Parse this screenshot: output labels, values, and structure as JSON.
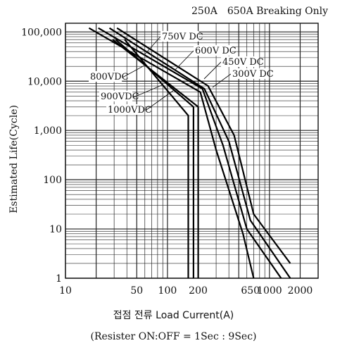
{
  "header": {
    "left": "250A",
    "right": "650A Breaking Only"
  },
  "chart_data": {
    "type": "line",
    "x_scale": "log",
    "y_scale": "log",
    "xlabel": "접점 전류 Load Current(A)",
    "ylabel": "Estimated Life(Cycle)",
    "note": "(Resister ON:OFF = 1Sec : 9Sec)",
    "xlim": [
      10,
      3000
    ],
    "ylim": [
      1,
      150000
    ],
    "x_ticks": [
      {
        "value": 10,
        "label": "10"
      },
      {
        "value": 50,
        "label": "50"
      },
      {
        "value": 100,
        "label": "100"
      },
      {
        "value": 200,
        "label": "200"
      },
      {
        "value": 650,
        "label": "650"
      },
      {
        "value": 1000,
        "label": "1000"
      },
      {
        "value": 2000,
        "label": "2000"
      }
    ],
    "y_ticks": [
      {
        "value": 1,
        "label": "1"
      },
      {
        "value": 10,
        "label": "10"
      },
      {
        "value": 100,
        "label": "100"
      },
      {
        "value": 1000,
        "label": "1,000"
      },
      {
        "value": 10000,
        "label": "10,000"
      },
      {
        "value": 100000,
        "label": "100,000"
      }
    ],
    "grid": true,
    "series": [
      {
        "name": "300V DC",
        "points": [
          [
            32,
            120000
          ],
          [
            250,
            8000
          ],
          [
            450,
            800
          ],
          [
            700,
            20
          ],
          [
            1600,
            2
          ]
        ]
      },
      {
        "name": "450V DC",
        "points": [
          [
            27,
            120000
          ],
          [
            230,
            7000
          ],
          [
            400,
            600
          ],
          [
            650,
            15
          ],
          [
            1600,
            1
          ]
        ]
      },
      {
        "name": "600V DC",
        "points": [
          [
            21,
            120000
          ],
          [
            220,
            7000
          ],
          [
            350,
            500
          ],
          [
            600,
            10
          ],
          [
            1300,
            1
          ]
        ]
      },
      {
        "name": "750V DC",
        "points": [
          [
            17,
            120000
          ],
          [
            210,
            6000
          ],
          [
            300,
            400
          ],
          [
            550,
            8
          ],
          [
            700,
            1
          ]
        ]
      },
      {
        "name": "800VDC",
        "points": [
          [
            38,
            70000
          ],
          [
            160,
            2000
          ],
          [
            160,
            1
          ]
        ]
      },
      {
        "name": "900VDC",
        "points": [
          [
            31,
            70000
          ],
          [
            180,
            3000
          ],
          [
            180,
            1
          ]
        ]
      },
      {
        "name": "1000VDC",
        "points": [
          [
            29,
            70000
          ],
          [
            200,
            3000
          ],
          [
            200,
            1
          ]
        ]
      }
    ],
    "labels": [
      {
        "text": "750V DC"
      },
      {
        "text": "600V DC"
      },
      {
        "text": "450V DC"
      },
      {
        "text": "300V DC"
      },
      {
        "text": "800VDC"
      },
      {
        "text": "900VDC"
      },
      {
        "text": "1000VDC"
      }
    ]
  }
}
